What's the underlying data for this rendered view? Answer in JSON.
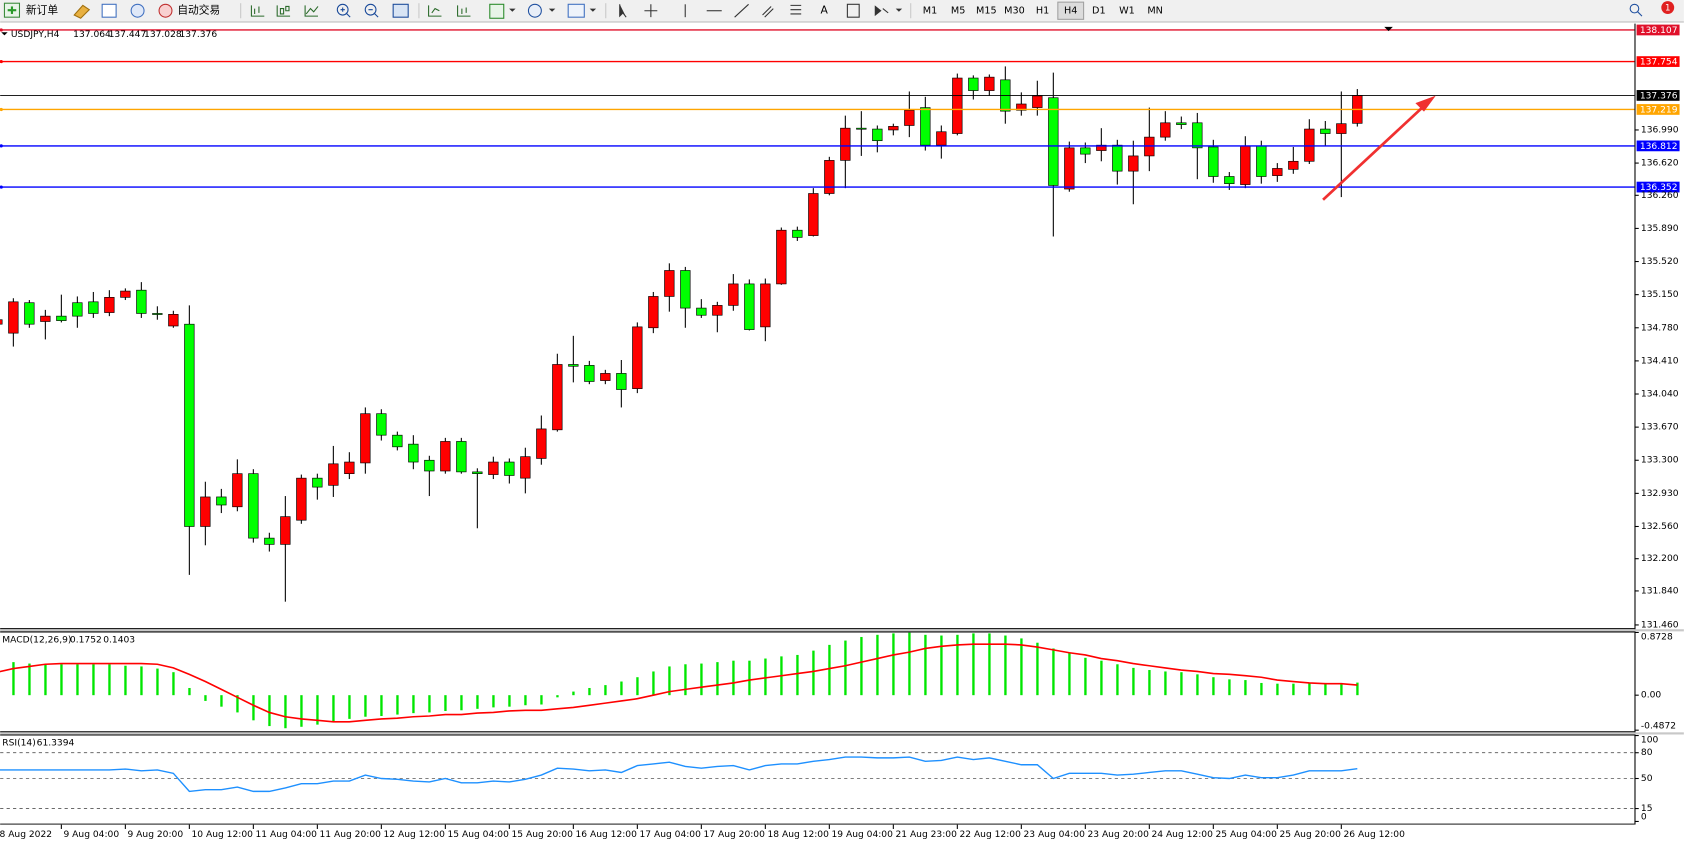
{
  "toolbar": {
    "new_order": "新订单",
    "auto_trading": "自动交易",
    "timeframes": [
      "M1",
      "M5",
      "M15",
      "M30",
      "H1",
      "H4",
      "D1",
      "W1",
      "MN"
    ],
    "notifications": "1"
  },
  "chart_data": [
    {
      "type": "candlestick",
      "title": "USDJPY,H4",
      "categories": [
        "8 Aug 2022",
        null,
        null,
        null,
        "9 Aug 04:00",
        null,
        null,
        null,
        "9 Aug 20:00",
        null,
        null,
        null,
        "10 Aug 12:00",
        null,
        null,
        null,
        "11 Aug 04:00",
        null,
        null,
        null,
        "11 Aug 20:00",
        null,
        null,
        null,
        "12 Aug 12:00",
        null,
        null,
        null,
        "15 Aug 04:00",
        null,
        null,
        null,
        "15 Aug 20:00",
        null,
        null,
        null,
        "16 Aug 12:00",
        null,
        null,
        null,
        "17 Aug 04:00",
        null,
        null,
        null,
        "17 Aug 20:00",
        null,
        null,
        null,
        "18 Aug 12:00",
        null,
        null,
        null,
        "19 Aug 04:00",
        null,
        null,
        null,
        "21 Aug 23:00",
        null,
        null,
        null,
        "22 Aug 12:00",
        null,
        null,
        null,
        "23 Aug 04:00",
        null,
        null,
        null,
        "23 Aug 20:00",
        null,
        null,
        null,
        "24 Aug 12:00",
        null,
        null,
        null,
        "25 Aug 04:00",
        null,
        null,
        null,
        "25 Aug 20:00",
        null,
        null,
        null,
        "26 Aug 12:00",
        null
      ],
      "open": [
        134.82,
        134.72,
        135.06,
        134.85,
        134.91,
        135.06,
        135.07,
        134.95,
        135.12,
        135.2,
        134.94,
        134.8,
        134.82,
        132.56,
        132.89,
        132.78,
        133.15,
        132.43,
        132.36,
        132.63,
        133.1,
        133.02,
        133.15,
        133.27,
        133.82,
        133.58,
        133.48,
        133.3,
        133.18,
        133.51,
        133.17,
        133.14,
        133.28,
        133.1,
        133.32,
        133.64,
        134.37,
        134.36,
        134.19,
        134.27,
        134.1,
        134.78,
        135.13,
        135.42,
        135,
        134.92,
        135.03,
        135.27,
        134.79,
        135.27,
        135.87,
        135.81,
        136.28,
        136.65,
        137.01,
        137,
        136.99,
        137.04,
        137.24,
        136.82,
        136.95,
        137.57,
        137.43,
        137.55,
        137.21,
        137.24,
        137.35,
        136.33,
        136.79,
        136.76,
        136.82,
        136.53,
        136.7,
        136.91,
        137.07,
        137.07,
        136.8,
        136.47,
        136.38,
        136.81,
        136.48,
        136.55,
        136.64,
        137,
        136.95,
        137.064
      ],
      "high": [
        134.9,
        135.11,
        135.09,
        134.98,
        135.15,
        135.13,
        135.18,
        135.2,
        135.22,
        135.29,
        135.02,
        134.97,
        135.03,
        133.06,
        132.98,
        133.31,
        133.2,
        132.49,
        132.9,
        133.14,
        133.15,
        133.46,
        133.39,
        133.89,
        133.87,
        133.62,
        133.58,
        133.35,
        133.55,
        133.55,
        133.21,
        133.34,
        133.32,
        133.44,
        133.8,
        134.49,
        134.69,
        134.41,
        134.31,
        134.42,
        134.84,
        135.18,
        135.5,
        135.46,
        135.1,
        135.07,
        135.38,
        135.32,
        135.33,
        135.9,
        135.91,
        136.34,
        136.69,
        137.15,
        137.2,
        137.04,
        137.06,
        137.42,
        137.36,
        137.04,
        137.62,
        137.6,
        137.61,
        137.7,
        137.41,
        137.54,
        137.63,
        136.86,
        136.85,
        137.01,
        136.88,
        136.87,
        137.24,
        137.2,
        137.14,
        137.18,
        136.88,
        136.52,
        136.92,
        136.87,
        136.62,
        136.8,
        137.11,
        137.09,
        137.42,
        137.447
      ],
      "low": [
        134.78,
        134.57,
        134.78,
        134.65,
        134.84,
        134.78,
        134.89,
        134.91,
        135.09,
        134.89,
        134.87,
        134.78,
        132.02,
        132.35,
        132.71,
        132.73,
        132.38,
        132.28,
        131.72,
        132.59,
        132.86,
        132.89,
        133.09,
        133.15,
        133.52,
        133.41,
        133.2,
        132.9,
        133.15,
        133.15,
        132.54,
        133.09,
        133.04,
        132.93,
        133.25,
        133.62,
        134.17,
        134.15,
        134.15,
        133.89,
        134.05,
        134.72,
        134.96,
        134.78,
        134.89,
        134.73,
        134.97,
        134.75,
        134.63,
        135.26,
        135.75,
        135.8,
        136.26,
        136.34,
        136.7,
        136.74,
        136.93,
        136.91,
        136.76,
        136.67,
        136.93,
        137.33,
        137.37,
        137.06,
        137.15,
        137.15,
        135.8,
        136.3,
        136.62,
        136.64,
        136.38,
        136.16,
        136.53,
        136.87,
        137,
        136.44,
        136.4,
        136.32,
        136.34,
        136.39,
        136.41,
        136.5,
        136.61,
        136.81,
        136.24,
        137.028
      ],
      "close": [
        134.87,
        135.07,
        134.82,
        134.91,
        134.86,
        134.91,
        134.94,
        135.12,
        135.19,
        134.94,
        134.93,
        134.93,
        132.56,
        132.89,
        132.8,
        133.15,
        132.43,
        132.36,
        132.67,
        133.1,
        133,
        133.26,
        133.28,
        133.82,
        133.58,
        133.45,
        133.28,
        133.18,
        133.51,
        133.17,
        133.15,
        133.28,
        133.13,
        133.34,
        133.65,
        134.37,
        134.35,
        134.18,
        134.27,
        134.09,
        134.79,
        135.13,
        135.42,
        135,
        134.92,
        135.03,
        135.27,
        134.76,
        135.27,
        135.87,
        135.79,
        136.28,
        136.65,
        137.01,
        137,
        136.87,
        137.03,
        137.21,
        136.82,
        136.97,
        137.57,
        137.43,
        137.58,
        137.2,
        137.28,
        137.37,
        136.37,
        136.79,
        136.72,
        136.82,
        136.53,
        136.7,
        136.91,
        137.07,
        137.05,
        136.79,
        136.47,
        136.39,
        136.81,
        136.47,
        136.56,
        136.64,
        137,
        136.95,
        137.06,
        137.376
      ],
      "up_color": "#ff0000",
      "down_color": "#00ff00",
      "wick_color": "#000000",
      "last_price_color": "#000000",
      "levels": [
        {
          "value": 138.107,
          "color": "#e0102a"
        },
        {
          "value": 137.754,
          "color": "#ff0000"
        },
        {
          "value": 137.219,
          "color": "#ffa500"
        },
        {
          "value": 136.812,
          "color": "#0000ff"
        },
        {
          "value": 136.352,
          "color": "#0000ff"
        }
      ],
      "ylim": [
        131.436,
        138.142
      ],
      "yticks": [
        {
          "value": 136.99,
          "label": "136.990"
        },
        {
          "value": 136.62,
          "label": "136.620"
        },
        {
          "value": 136.26,
          "label": "136.260"
        },
        {
          "value": 135.89,
          "label": "135.890"
        },
        {
          "value": 135.52,
          "label": "135.520"
        },
        {
          "value": 135.15,
          "label": "135.150"
        },
        {
          "value": 134.78,
          "label": "134.780"
        },
        {
          "value": 134.41,
          "label": "134.410"
        },
        {
          "value": 134.04,
          "label": "134.040"
        },
        {
          "value": 133.67,
          "label": "133.670"
        },
        {
          "value": 133.3,
          "label": "133.300"
        },
        {
          "value": 132.93,
          "label": "132.930"
        },
        {
          "value": 132.56,
          "label": "132.560"
        },
        {
          "value": 132.2,
          "label": "132.200"
        },
        {
          "value": 131.84,
          "label": "131.840"
        },
        {
          "value": 131.46,
          "label": "131.460"
        }
      ]
    },
    {
      "type": "macd",
      "title": "MACD(12,26,9)",
      "series": [
        {
          "type": "bar",
          "color": "#00e600",
          "values": [
            0.46,
            0.46,
            0.44,
            0.43,
            0.43,
            0.43,
            0.43,
            0.43,
            0.41,
            0.4,
            0.37,
            0.32,
            0.1,
            -0.08,
            -0.16,
            -0.24,
            -0.35,
            -0.43,
            -0.46,
            -0.44,
            -0.41,
            -0.38,
            -0.33,
            -0.3,
            -0.29,
            -0.27,
            -0.25,
            -0.24,
            -0.22,
            -0.21,
            -0.19,
            -0.17,
            -0.16,
            -0.14,
            -0.13,
            -0.03,
            0.05,
            0.1,
            0.14,
            0.19,
            0.25,
            0.33,
            0.4,
            0.43,
            0.44,
            0.46,
            0.48,
            0.48,
            0.51,
            0.54,
            0.56,
            0.62,
            0.7,
            0.76,
            0.81,
            0.84,
            0.86,
            0.87,
            0.84,
            0.83,
            0.84,
            0.86,
            0.86,
            0.83,
            0.79,
            0.73,
            0.65,
            0.59,
            0.52,
            0.48,
            0.43,
            0.38,
            0.35,
            0.33,
            0.32,
            0.29,
            0.25,
            0.22,
            0.21,
            0.17,
            0.16,
            0.16,
            0.17,
            0.17,
            0.17,
            0.1752
          ]
        },
        {
          "type": "line",
          "color": "#ff0000",
          "values": [
            0.32,
            0.37,
            0.4,
            0.43,
            0.44,
            0.44,
            0.44,
            0.44,
            0.44,
            0.44,
            0.43,
            0.38,
            0.29,
            0.19,
            0.08,
            -0.03,
            -0.14,
            -0.24,
            -0.3,
            -0.33,
            -0.35,
            -0.37,
            -0.37,
            -0.35,
            -0.33,
            -0.32,
            -0.3,
            -0.29,
            -0.27,
            -0.27,
            -0.25,
            -0.24,
            -0.22,
            -0.21,
            -0.21,
            -0.19,
            -0.17,
            -0.14,
            -0.11,
            -0.08,
            -0.05,
            0,
            0.05,
            0.08,
            0.11,
            0.14,
            0.17,
            0.21,
            0.24,
            0.27,
            0.3,
            0.33,
            0.37,
            0.41,
            0.46,
            0.51,
            0.56,
            0.6,
            0.65,
            0.68,
            0.7,
            0.71,
            0.71,
            0.71,
            0.7,
            0.67,
            0.63,
            0.59,
            0.56,
            0.51,
            0.48,
            0.44,
            0.41,
            0.38,
            0.35,
            0.33,
            0.3,
            0.29,
            0.27,
            0.25,
            0.21,
            0.19,
            0.17,
            0.16,
            0.16,
            0.1403
          ]
        }
      ],
      "ylim": [
        -0.4872,
        0.8728
      ],
      "yticks": [
        0.8728,
        {
          "value": 0,
          "label": "0.00"
        },
        -0.4872
      ]
    },
    {
      "type": "line",
      "title": "RSI(14)",
      "color": "#1e90ff",
      "values": [
        60,
        60,
        60,
        60,
        60,
        60,
        60,
        60,
        61,
        59,
        60,
        56,
        35,
        37,
        37,
        40,
        35,
        35,
        39,
        44,
        44,
        47,
        47,
        54,
        50,
        49,
        47,
        46,
        50,
        45,
        45,
        47,
        46,
        49,
        54,
        62,
        61,
        59,
        60,
        57,
        65,
        67,
        69,
        64,
        62,
        64,
        65,
        60,
        65,
        67,
        67,
        70,
        72,
        75,
        75,
        74,
        74,
        75,
        70,
        71,
        75,
        72,
        74,
        70,
        66,
        66,
        50,
        56,
        56,
        56,
        54,
        55,
        57,
        59,
        59,
        55,
        51,
        50,
        54,
        51,
        51,
        54,
        59,
        59,
        59,
        61.3394
      ],
      "ylim": [
        0,
        100
      ],
      "yticks": [
        100,
        80,
        50,
        15,
        0
      ],
      "levels": [
        80,
        50,
        15
      ]
    }
  ]
}
